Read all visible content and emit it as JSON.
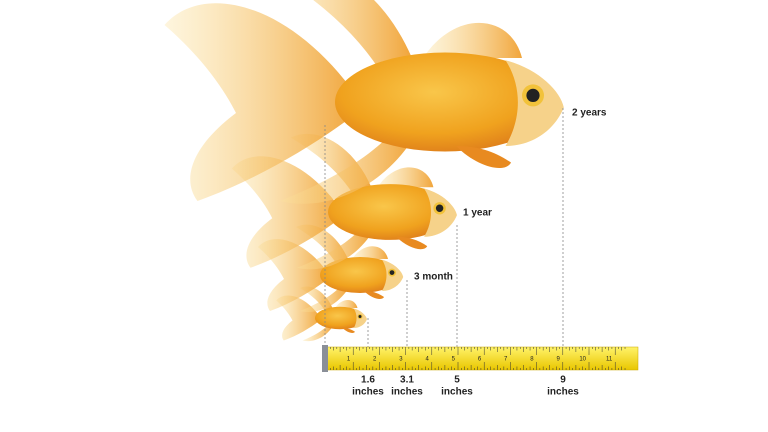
{
  "labels": {
    "stages": [
      "2 years",
      "1 year",
      "3 month"
    ]
  },
  "tape": {
    "marks": [
      "1",
      "2",
      "3",
      "4",
      "5",
      "6",
      "7",
      "8",
      "9",
      "10",
      "11"
    ]
  },
  "sizes": [
    {
      "length": "1.6",
      "unit": "inches"
    },
    {
      "length": "3.1",
      "unit": "inches"
    },
    {
      "length": "5",
      "unit": "inches"
    },
    {
      "length": "9",
      "unit": "inches"
    }
  ]
}
